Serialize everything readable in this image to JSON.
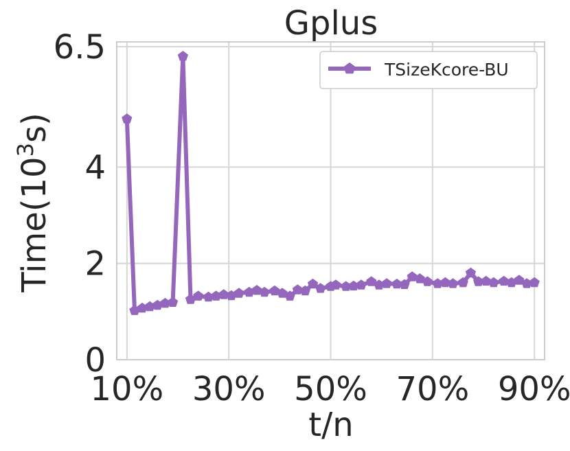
{
  "chart_data": {
    "type": "line",
    "title": "Gplus",
    "xlabel": "t/n",
    "ylabel": "Time(10",
    "ylabel_superscript": "3",
    "ylabel_suffix": "s)",
    "xlim": [
      0.08,
      0.92
    ],
    "ylim": [
      0,
      6.6
    ],
    "x_ticks": [
      0.1,
      0.3,
      0.5,
      0.7,
      0.9
    ],
    "x_tick_labels": [
      "10%",
      "30%",
      "50%",
      "70%",
      "90%"
    ],
    "y_ticks": [
      0,
      2,
      4,
      6.5
    ],
    "y_tick_labels": [
      "0",
      "2",
      "4",
      "6.5"
    ],
    "grid": true,
    "legend_position": "top-right",
    "series": [
      {
        "name": "TSizeKcore-BU",
        "color": "#9467bd",
        "marker": "pentagon",
        "x": [
          0.1,
          0.115,
          0.13,
          0.145,
          0.16,
          0.175,
          0.19,
          0.21,
          0.225,
          0.24,
          0.26,
          0.275,
          0.29,
          0.305,
          0.32,
          0.34,
          0.355,
          0.37,
          0.39,
          0.405,
          0.42,
          0.435,
          0.45,
          0.465,
          0.48,
          0.5,
          0.51,
          0.53,
          0.545,
          0.56,
          0.58,
          0.595,
          0.61,
          0.63,
          0.645,
          0.66,
          0.675,
          0.69,
          0.71,
          0.725,
          0.74,
          0.76,
          0.775,
          0.79,
          0.805,
          0.82,
          0.84,
          0.855,
          0.87,
          0.885,
          0.9
        ],
        "y": [
          5.0,
          1.02,
          1.07,
          1.1,
          1.13,
          1.17,
          1.19,
          6.3,
          1.25,
          1.32,
          1.3,
          1.32,
          1.35,
          1.33,
          1.38,
          1.4,
          1.44,
          1.4,
          1.43,
          1.38,
          1.32,
          1.45,
          1.43,
          1.57,
          1.48,
          1.52,
          1.55,
          1.52,
          1.53,
          1.55,
          1.62,
          1.55,
          1.58,
          1.57,
          1.56,
          1.72,
          1.68,
          1.62,
          1.58,
          1.6,
          1.58,
          1.6,
          1.8,
          1.62,
          1.63,
          1.6,
          1.63,
          1.6,
          1.65,
          1.58,
          1.6
        ]
      }
    ]
  }
}
